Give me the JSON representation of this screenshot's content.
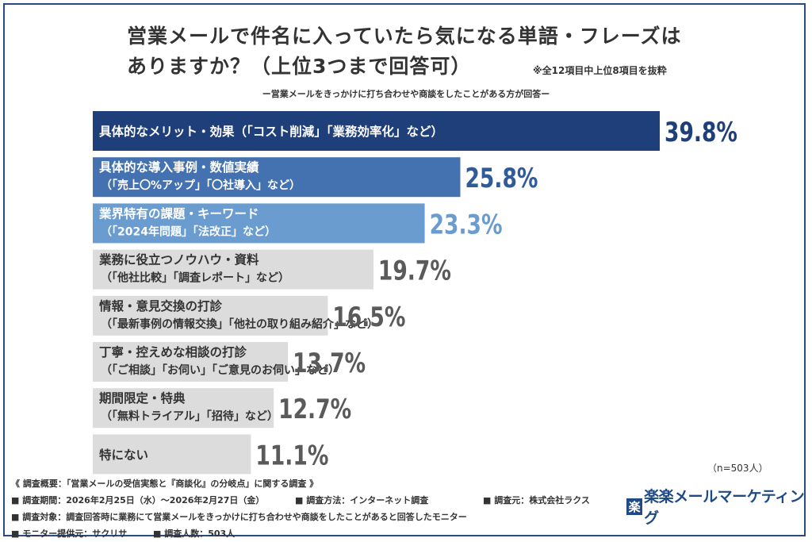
{
  "title": {
    "line1": "営業メールで件名に入っていたら気になる単語・フレーズは",
    "line2": "ありますか？（上位3つまで回答可）"
  },
  "note": "※全12項目中上位8項目を抜粋",
  "subtitle": "ー営業メールをきっかけに打ち合わせや商談をしたことがある方が回答ー",
  "chart_data": {
    "type": "bar",
    "orientation": "horizontal",
    "categories": [
      [
        "具体的なメリット・効果（「コスト削減」「業務効率化」など）"
      ],
      [
        "具体的な導入事例・数値実績",
        "（「売上〇%アップ」「〇社導入」など）"
      ],
      [
        "業界特有の課題・キーワード",
        "（「2024年問題」「法改正」など）"
      ],
      [
        "業務に役立つノウハウ・資料",
        "（「他社比較」「調査レポート」など）"
      ],
      [
        "情報・意見交換の打診",
        "（「最新事例の情報交換」「他社の取り組み紹介」など）"
      ],
      [
        "丁寧・控えめな相談の打診",
        "（「ご相談」「お伺い」「ご意見のお伺い」など）"
      ],
      [
        "期間限定・特典",
        "（「無料トライアル」「招待」など）"
      ],
      [
        "特にない"
      ]
    ],
    "values": [
      39.8,
      25.8,
      23.3,
      19.7,
      16.5,
      13.7,
      12.7,
      11.1
    ],
    "value_labels": [
      "39.8%",
      "25.8%",
      "23.3%",
      "19.7%",
      "16.5%",
      "13.7%",
      "12.7%",
      "11.1%"
    ],
    "bar_colors": [
      "#1f3f7a",
      "#4472b0",
      "#6b9cd0",
      "#dcdcdc",
      "#dcdcdc",
      "#dcdcdc",
      "#dcdcdc",
      "#dcdcdc"
    ],
    "label_text_colors": [
      "#ffffff",
      "#ffffff",
      "#ffffff",
      "#333333",
      "#333333",
      "#333333",
      "#333333",
      "#333333"
    ],
    "value_label_colors": [
      "#1f3f7a",
      "#2f5b9a",
      "#6b9cd0",
      "#5a5a5a",
      "#5a5a5a",
      "#5a5a5a",
      "#5a5a5a",
      "#5a5a5a"
    ],
    "xlim": [
      0,
      39.8
    ],
    "grid": false,
    "legend": "none"
  },
  "n_label": "（n=503人）",
  "survey": {
    "heading": "《 調査概要：「営業メールの受信実態と『商談化』の分岐点」に関する調査 》",
    "period": "■ 調査期間：2026年2月25日（水）～2026年2月27日（金）",
    "method": "■ 調査方法：インターネット調査",
    "source": "■ 調査元：株式会社ラクス",
    "target": "■ 調査対象：調査回答時に業務にて営業メールをきっかけに打ち合わせや商談をしたことがあると回答したモニター",
    "provider": "■ モニター提供元：サクリサ",
    "count": "■ 調査人数：503人"
  },
  "logo": {
    "mark": "楽",
    "text": "楽楽メールマーケティング"
  }
}
